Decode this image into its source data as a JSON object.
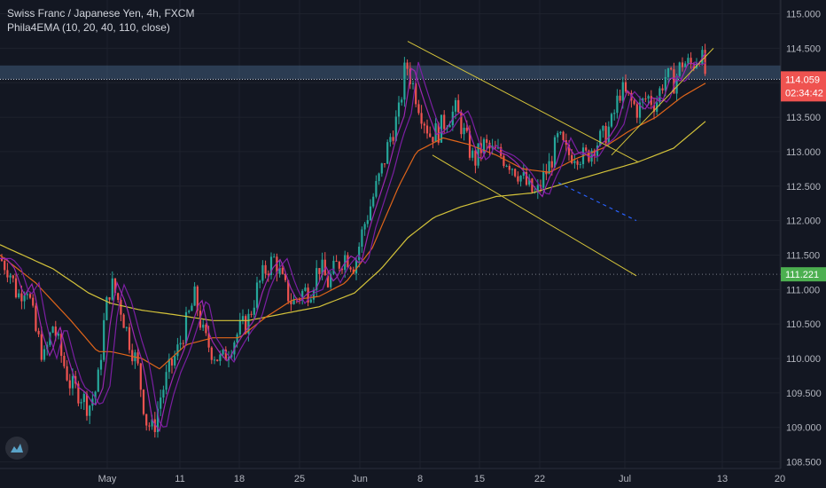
{
  "header": {
    "symbol": "Swiss Franc / Japanese Yen, 4h, FXCM",
    "indicator": "Phila4EMA (10, 20, 40, 110, close)"
  },
  "colors": {
    "background": "#131722",
    "grid": "#1e222d",
    "up": "#26a69a",
    "down": "#ef5350",
    "ema10": "#9c27b0",
    "ema20": "#7b1fa2",
    "ema40": "#e0651a",
    "ema110": "#d4c33a",
    "trendline": "#d4c33a",
    "projection": "#2962ff",
    "zone": "#4a6a8f",
    "price_label": "#ef5350",
    "level_label": "#4caf50"
  },
  "chart_data": {
    "type": "candlestick",
    "ylim": [
      108.25,
      115.2
    ],
    "yticks": [
      "115.000",
      "114.500",
      "114.000",
      "113.500",
      "113.000",
      "112.500",
      "112.000",
      "111.500",
      "111.000",
      "110.500",
      "110.000",
      "109.500",
      "109.000",
      "108.500"
    ],
    "ytick_values": [
      115.0,
      114.5,
      114.0,
      113.5,
      113.0,
      112.5,
      112.0,
      111.5,
      111.0,
      110.5,
      110.0,
      109.5,
      109.0,
      108.5
    ],
    "xticks": [
      "May",
      "11",
      "18",
      "25",
      "Jun",
      "8",
      "15",
      "22",
      "Jul",
      "13",
      "20"
    ],
    "series": [
      {
        "name": "EMA 10",
        "color_key": "ema10"
      },
      {
        "name": "EMA 20",
        "color_key": "ema20"
      },
      {
        "name": "EMA 40",
        "color_key": "ema40"
      },
      {
        "name": "EMA 110",
        "color_key": "ema110"
      }
    ],
    "close_path": [
      [
        0,
        111.45
      ],
      [
        10,
        111.3
      ],
      [
        20,
        110.9
      ],
      [
        30,
        111.1
      ],
      [
        40,
        110.4
      ],
      [
        50,
        110.0
      ],
      [
        60,
        110.5
      ],
      [
        70,
        110.0
      ],
      [
        80,
        109.6
      ],
      [
        90,
        109.5
      ],
      [
        100,
        109.3
      ],
      [
        110,
        109.6
      ],
      [
        118,
        110.6
      ],
      [
        125,
        111.1
      ],
      [
        135,
        110.8
      ],
      [
        145,
        110.3
      ],
      [
        155,
        109.9
      ],
      [
        165,
        109.1
      ],
      [
        173,
        108.95
      ],
      [
        180,
        109.4
      ],
      [
        190,
        109.8
      ],
      [
        200,
        110.1
      ],
      [
        210,
        110.5
      ],
      [
        220,
        110.9
      ],
      [
        230,
        110.3
      ],
      [
        240,
        110.1
      ],
      [
        250,
        109.95
      ],
      [
        260,
        110.2
      ],
      [
        270,
        110.4
      ],
      [
        280,
        110.55
      ],
      [
        290,
        111.0
      ],
      [
        300,
        111.3
      ],
      [
        310,
        111.45
      ],
      [
        320,
        111.05
      ],
      [
        330,
        110.8
      ],
      [
        340,
        110.95
      ],
      [
        350,
        111.0
      ],
      [
        360,
        111.35
      ],
      [
        370,
        111.1
      ],
      [
        380,
        111.35
      ],
      [
        390,
        111.5
      ],
      [
        400,
        111.35
      ],
      [
        410,
        111.9
      ],
      [
        420,
        112.3
      ],
      [
        430,
        112.7
      ],
      [
        440,
        113.2
      ],
      [
        450,
        113.55
      ],
      [
        458,
        114.3
      ],
      [
        465,
        114.0
      ],
      [
        475,
        113.6
      ],
      [
        485,
        113.25
      ],
      [
        495,
        113.3
      ],
      [
        505,
        113.5
      ],
      [
        515,
        113.6
      ],
      [
        525,
        113.2
      ],
      [
        535,
        112.85
      ],
      [
        545,
        113.1
      ],
      [
        555,
        113.0
      ],
      [
        565,
        112.95
      ],
      [
        575,
        112.85
      ],
      [
        585,
        112.7
      ],
      [
        595,
        112.5
      ],
      [
        605,
        112.35
      ],
      [
        612,
        112.6
      ],
      [
        620,
        112.8
      ],
      [
        630,
        113.2
      ],
      [
        640,
        112.95
      ],
      [
        650,
        113.0
      ],
      [
        660,
        112.9
      ],
      [
        670,
        113.1
      ],
      [
        680,
        113.2
      ],
      [
        690,
        113.4
      ],
      [
        700,
        113.9
      ],
      [
        710,
        113.75
      ],
      [
        720,
        113.6
      ],
      [
        730,
        113.8
      ],
      [
        740,
        113.7
      ],
      [
        750,
        114.1
      ],
      [
        760,
        114.0
      ],
      [
        770,
        114.3
      ],
      [
        780,
        114.25
      ],
      [
        790,
        114.45
      ],
      [
        797,
        114.06
      ]
    ],
    "ema110_path": [
      [
        0,
        111.65
      ],
      [
        60,
        111.3
      ],
      [
        100,
        110.95
      ],
      [
        125,
        110.8
      ],
      [
        160,
        110.7
      ],
      [
        200,
        110.63
      ],
      [
        240,
        110.55
      ],
      [
        280,
        110.55
      ],
      [
        320,
        110.65
      ],
      [
        360,
        110.75
      ],
      [
        400,
        110.95
      ],
      [
        430,
        111.3
      ],
      [
        460,
        111.75
      ],
      [
        490,
        112.05
      ],
      [
        520,
        112.2
      ],
      [
        560,
        112.35
      ],
      [
        600,
        112.4
      ],
      [
        640,
        112.55
      ],
      [
        680,
        112.7
      ],
      [
        720,
        112.85
      ],
      [
        760,
        113.05
      ],
      [
        797,
        113.45
      ]
    ],
    "ema40_path": [
      [
        0,
        111.5
      ],
      [
        40,
        111.1
      ],
      [
        80,
        110.55
      ],
      [
        110,
        110.1
      ],
      [
        125,
        110.1
      ],
      [
        160,
        110.0
      ],
      [
        180,
        109.85
      ],
      [
        210,
        110.2
      ],
      [
        240,
        110.3
      ],
      [
        270,
        110.3
      ],
      [
        300,
        110.6
      ],
      [
        330,
        110.85
      ],
      [
        360,
        110.9
      ],
      [
        390,
        111.1
      ],
      [
        420,
        111.6
      ],
      [
        450,
        112.5
      ],
      [
        470,
        113.0
      ],
      [
        500,
        113.2
      ],
      [
        530,
        113.1
      ],
      [
        560,
        112.95
      ],
      [
        590,
        112.75
      ],
      [
        620,
        112.7
      ],
      [
        650,
        112.9
      ],
      [
        680,
        113.05
      ],
      [
        710,
        113.3
      ],
      [
        740,
        113.5
      ],
      [
        770,
        113.8
      ],
      [
        797,
        114.0
      ]
    ],
    "resistance_zone": [
      114.05,
      114.25
    ],
    "horizontal_level": 111.221,
    "current_price": "114.059",
    "countdown": "02:34:42",
    "level_label": "111.221",
    "trendlines": [
      {
        "from": [
          460,
          114.6
        ],
        "to": [
          720,
          112.85
        ]
      },
      {
        "from": [
          488,
          112.95
        ],
        "to": [
          718,
          111.2
        ]
      },
      {
        "from": [
          690,
          112.95
        ],
        "to": [
          805,
          114.5
        ]
      }
    ],
    "projection": {
      "from": [
        630,
        112.55
      ],
      "to": [
        718,
        112.0
      ]
    }
  }
}
